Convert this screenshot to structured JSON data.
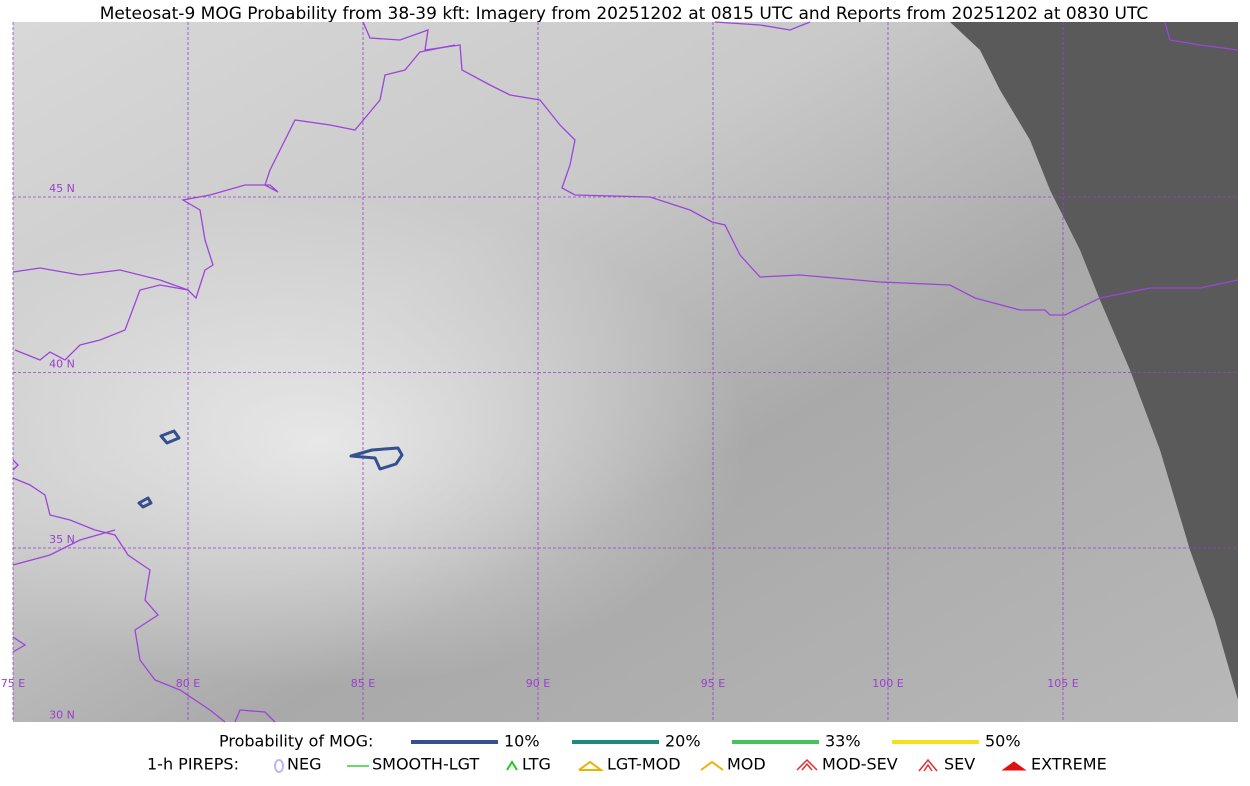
{
  "title": "Meteosat-9 MOG Probability from 38-39 kft: Imagery from 20251202 at 0815 UTC and Reports from 20251202 at 0830 UTC",
  "map": {
    "lat_labels": [
      "45 N",
      "40 N",
      "35 N",
      "30 N"
    ],
    "lon_labels": [
      "75 E",
      "80 E",
      "85 E",
      "90 E",
      "95 E",
      "100 E",
      "105 E"
    ],
    "grid_color": "#9a40d0"
  },
  "legend": {
    "probability_title": "Probability of MOG:",
    "probability": [
      {
        "label": "10%",
        "color": "#34508f"
      },
      {
        "label": "20%",
        "color": "#1f8a80"
      },
      {
        "label": "33%",
        "color": "#46c35a"
      },
      {
        "label": "50%",
        "color": "#f5e11a"
      }
    ],
    "pireps_title": "1-h PIREPS:",
    "pireps": [
      {
        "label": "NEG",
        "color": "#b7b7f5"
      },
      {
        "label": "SMOOTH-LGT",
        "color": "#3ccc3c"
      },
      {
        "label": "LTG",
        "color": "#22cc22"
      },
      {
        "label": "LGT-MOD",
        "color": "#f0b000"
      },
      {
        "label": "MOD",
        "color": "#f0b000"
      },
      {
        "label": "MOD-SEV",
        "color": "#e03030"
      },
      {
        "label": "SEV",
        "color": "#e03030"
      },
      {
        "label": "EXTREME",
        "color": "#e01010"
      }
    ]
  }
}
